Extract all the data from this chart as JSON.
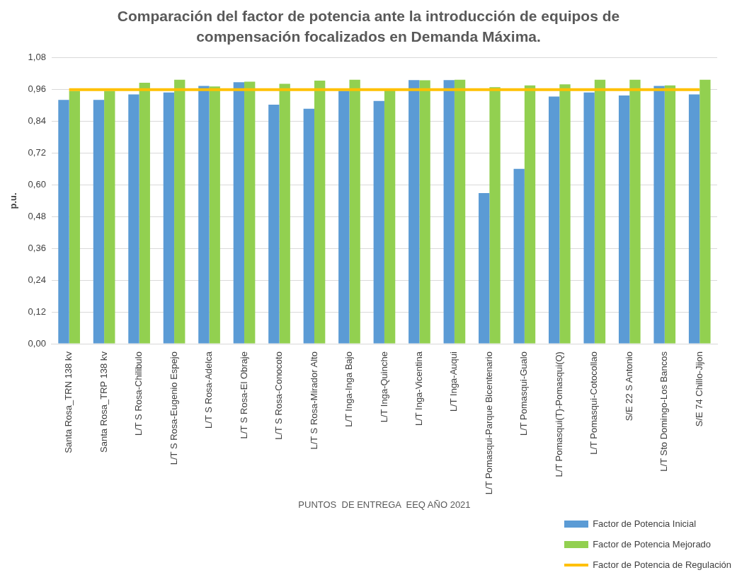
{
  "chart_data": {
    "type": "bar",
    "title": "Comparación del factor de potencia ante la introducción de equipos de compensación focalizados en Demanda Máxima.",
    "xlabel": "PUNTOS  DE ENTREGA  EEQ AÑO 2021",
    "ylabel": "p.u.",
    "categories": [
      "Santa Rosa_TRN 138 kv",
      "Santa Rosa_TRP 138 kv",
      "L/T S Rosa-Chilibulo",
      "L/T S Rosa-Eugenio Espejo",
      "L/T S Rosa-Adelca",
      "L/T S Rosa-El Obraje",
      "L/T S Rosa-Conocoto",
      "L/T S Rosa-Mirador Alto",
      "L/T Inga-Inga Bajo",
      "L/T Inga-Quinche",
      "L/T Inga-Vicentina",
      "L/T Inga-Auqui",
      "L/T Pomasqui-Parque Bicentenario",
      "L/T Pomasqui-Gualo",
      "L/T Pomasqui(T)-Pomasqui(Q)",
      "L/T Pomasqui-Cotocollao",
      "S/E 22 S Antonio",
      "L/T Sto Domingo-Los Bancos",
      "S/E 74 Chillo-Jijon"
    ],
    "series": [
      {
        "name": "Factor de Potencia Inicial",
        "color": "#5b9bd5",
        "values": [
          0.921,
          0.921,
          0.942,
          0.949,
          0.974,
          0.988,
          0.903,
          0.888,
          0.955,
          0.917,
          0.996,
          0.996,
          0.569,
          0.661,
          0.934,
          0.949,
          0.938,
          0.974,
          0.942
        ]
      },
      {
        "name": "Factor de Potencia Mejorado",
        "color": "#92d050",
        "values": [
          0.955,
          0.955,
          0.986,
          0.997,
          0.972,
          0.99,
          0.982,
          0.994,
          0.997,
          0.963,
          0.995,
          0.997,
          0.969,
          0.976,
          0.98,
          0.997,
          0.997,
          0.976,
          0.997
        ]
      },
      {
        "name": "Factor de Potencia de Regulación",
        "type": "line",
        "color": "#ffc000",
        "marker": "none",
        "values": [
          0.96,
          0.96,
          0.96,
          0.96,
          0.96,
          0.96,
          0.96,
          0.96,
          0.96,
          0.96,
          0.96,
          0.96,
          0.96,
          0.96,
          0.96,
          0.96,
          0.96,
          0.96,
          0.96
        ]
      }
    ],
    "ylim": [
      0,
      1.08
    ],
    "yticks": [
      {
        "value": 0,
        "label": "0,00"
      },
      {
        "value": 0.12,
        "label": "0,12"
      },
      {
        "value": 0.24,
        "label": "0,24"
      },
      {
        "value": 0.36,
        "label": "0,36"
      },
      {
        "value": 0.48,
        "label": "0,48"
      },
      {
        "value": 0.6,
        "label": "0,60"
      },
      {
        "value": 0.72,
        "label": "0,72"
      },
      {
        "value": 0.84,
        "label": "0,84"
      },
      {
        "value": 0.96,
        "label": "0,96"
      },
      {
        "value": 1.08,
        "label": "1,08"
      }
    ],
    "grid": "y",
    "legend": "bottom right"
  }
}
